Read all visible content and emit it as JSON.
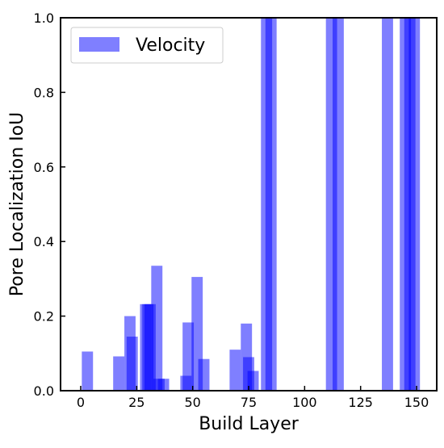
{
  "chart_data": {
    "type": "bar",
    "title": "",
    "xlabel": "Build Layer",
    "ylabel": "Pore Localization IoU",
    "xlim": [
      -9,
      159
    ],
    "ylim": [
      0,
      1
    ],
    "xticks": [
      0,
      25,
      50,
      75,
      100,
      125,
      150
    ],
    "yticks": [
      0.0,
      0.2,
      0.4,
      0.6,
      0.8,
      1.0
    ],
    "ytick_labels": [
      "0.0",
      "0.2",
      "0.4",
      "0.6",
      "0.8",
      "1.0"
    ],
    "grid": false,
    "legend": {
      "position": "top-left",
      "entries": [
        "Velocity"
      ]
    },
    "series": [
      {
        "name": "Velocity",
        "color": "#0000ff",
        "opacity": 0.5,
        "bar_width": 5,
        "x": [
          3,
          17,
          22,
          23,
          29,
          30,
          31,
          34,
          35,
          37,
          47,
          48,
          52,
          55,
          69,
          74,
          75,
          77,
          83,
          85,
          112,
          115,
          137,
          145,
          147,
          149
        ],
        "values": [
          0.105,
          0.092,
          0.2,
          0.145,
          0.232,
          0.232,
          0.232,
          0.335,
          0.032,
          0.032,
          0.04,
          0.183,
          0.305,
          0.085,
          0.11,
          0.18,
          0.09,
          0.053,
          1.0,
          1.0,
          1.0,
          1.0,
          1.0,
          1.0,
          1.0,
          1.0
        ]
      }
    ]
  }
}
